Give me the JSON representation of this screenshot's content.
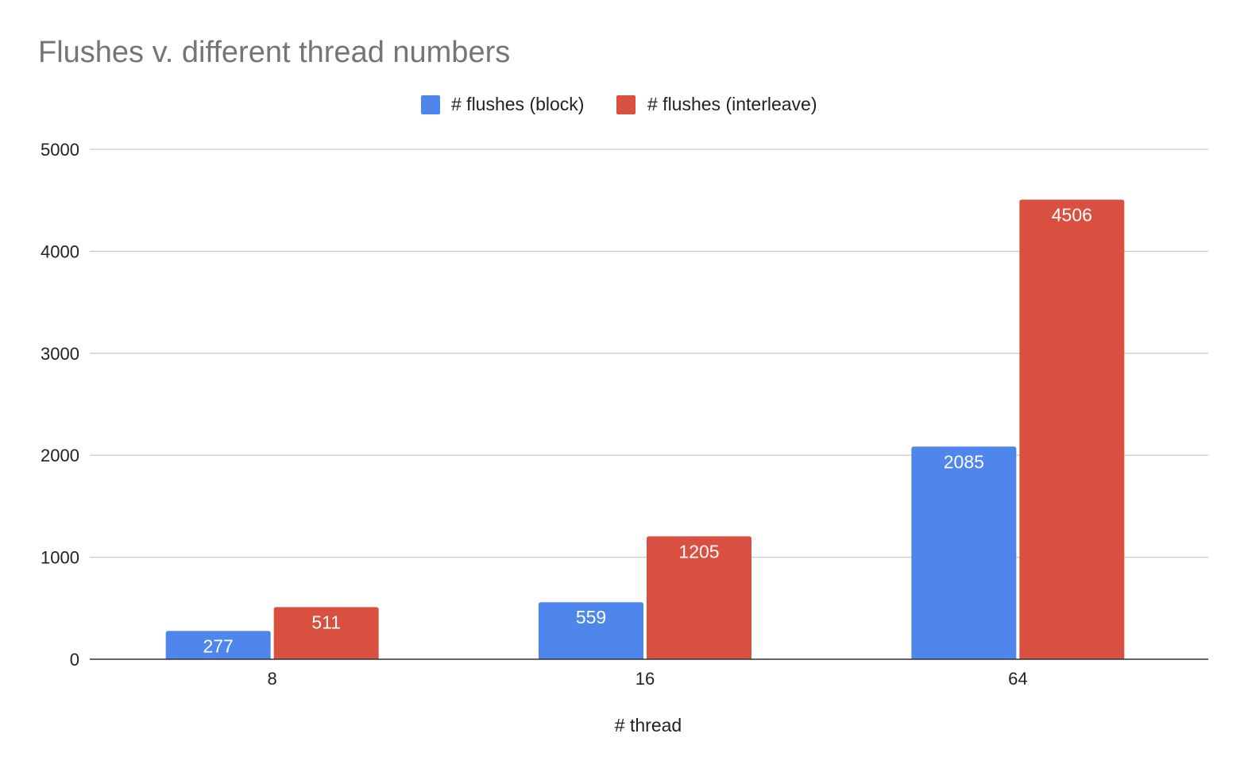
{
  "chart_data": {
    "type": "bar",
    "title": "Flushes v. different thread numbers",
    "xlabel": "# thread",
    "ylabel": "",
    "categories": [
      "8",
      "16",
      "64"
    ],
    "series": [
      {
        "name": "# flushes (block)",
        "color": "#4f86ec",
        "values": [
          277,
          559,
          2085
        ]
      },
      {
        "name": "# flushes (interleave)",
        "color": "#d95040",
        "values": [
          511,
          1205,
          4506
        ]
      }
    ],
    "ylim": [
      0,
      5000
    ],
    "yticks": [
      0,
      1000,
      2000,
      3000,
      4000,
      5000
    ],
    "grid": true,
    "legend_position": "top-center",
    "data_labels": true
  }
}
